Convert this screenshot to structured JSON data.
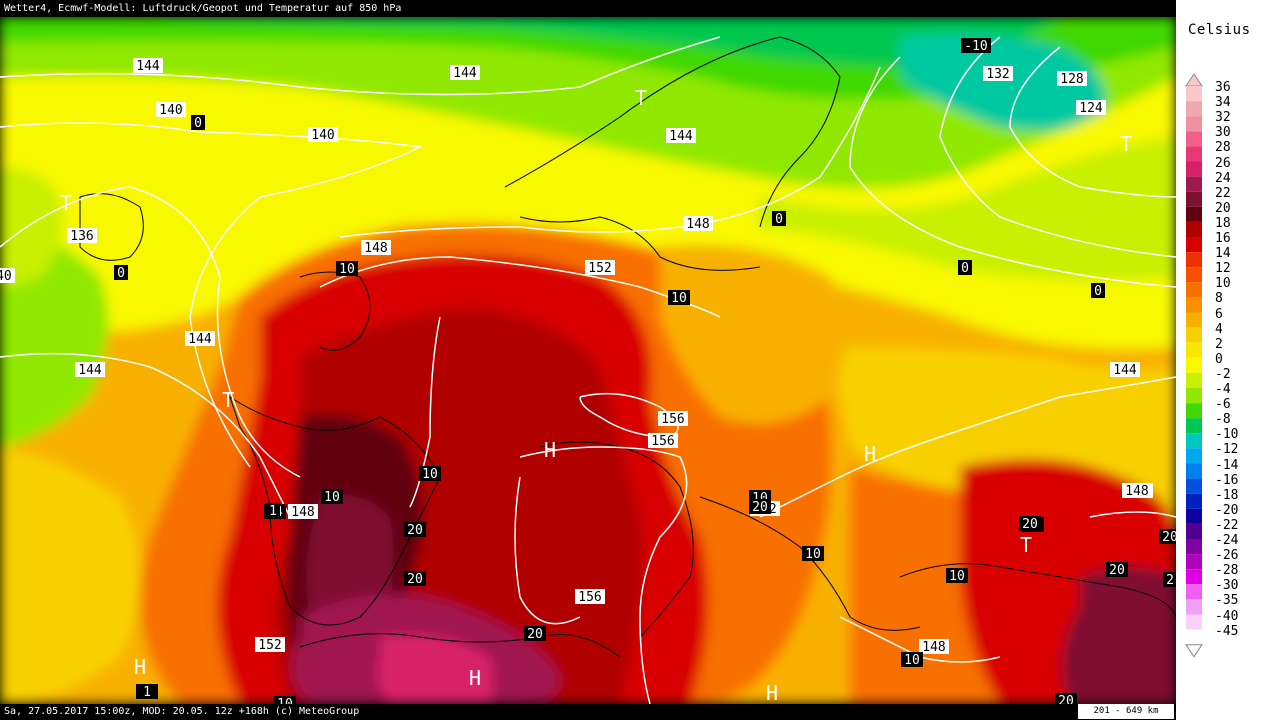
{
  "title": "Wetter4, Ecmwf-Modell: Luftdruck/Geopot und Temperatur auf 850 hPa",
  "footer": "Sa, 27.05.2017 15:00z, MOD: 20.05. 12z +168h (c) MeteoGroup",
  "scale": "201 - 649 km",
  "legend": {
    "unit": "Celsius",
    "entries": [
      {
        "label": "36",
        "color": "#f8c8c8"
      },
      {
        "label": "34",
        "color": "#f0a8b0"
      },
      {
        "label": "32",
        "color": "#f090a0"
      },
      {
        "label": "30",
        "color": "#f06088"
      },
      {
        "label": "28",
        "color": "#e83878"
      },
      {
        "label": "26",
        "color": "#d82068"
      },
      {
        "label": "24",
        "color": "#a01850"
      },
      {
        "label": "22",
        "color": "#801030"
      },
      {
        "label": "20",
        "color": "#600010"
      },
      {
        "label": "18",
        "color": "#b00000"
      },
      {
        "label": "16",
        "color": "#d80000"
      },
      {
        "label": "14",
        "color": "#f03000"
      },
      {
        "label": "12",
        "color": "#f85000"
      },
      {
        "label": "10",
        "color": "#f87000"
      },
      {
        "label": "8",
        "color": "#f89000"
      },
      {
        "label": "6",
        "color": "#f8b000"
      },
      {
        "label": "4",
        "color": "#f8d000"
      },
      {
        "label": "2",
        "color": "#f8e800"
      },
      {
        "label": "0",
        "color": "#f8f800"
      },
      {
        "label": "-2",
        "color": "#c8f000"
      },
      {
        "label": "-4",
        "color": "#90e800"
      },
      {
        "label": "-6",
        "color": "#40d800"
      },
      {
        "label": "-8",
        "color": "#00c850"
      },
      {
        "label": "-10",
        "color": "#00c8c0"
      },
      {
        "label": "-12",
        "color": "#00a8f0"
      },
      {
        "label": "-14",
        "color": "#0080f0"
      },
      {
        "label": "-16",
        "color": "#0050e0"
      },
      {
        "label": "-18",
        "color": "#0020c0"
      },
      {
        "label": "-20",
        "color": "#1000a0"
      },
      {
        "label": "-22",
        "color": "#500090"
      },
      {
        "label": "-24",
        "color": "#8000a0"
      },
      {
        "label": "-26",
        "color": "#b000c0"
      },
      {
        "label": "-28",
        "color": "#e000e0"
      },
      {
        "label": "-30",
        "color": "#f060f0"
      },
      {
        "label": "-35",
        "color": "#f0a0f0"
      },
      {
        "label": "-40",
        "color": "#f8d0f8"
      },
      {
        "label": "-45",
        "color": "#ffffff"
      }
    ]
  },
  "geopotential_labels": [
    "144",
    "144",
    "140",
    "140",
    "136",
    "140",
    "144",
    "144",
    "148",
    "148",
    "152",
    "148",
    "144",
    "132",
    "128",
    "124",
    "144",
    "156",
    "156",
    "152",
    "156",
    "148",
    "148",
    "152",
    "148",
    "10",
    "-10"
  ],
  "temperature_labels": [
    "0",
    "0",
    "0",
    "0",
    "0",
    "10",
    "10",
    "10",
    "10",
    "10",
    "10",
    "10",
    "10",
    "10",
    "10",
    "20",
    "20",
    "20",
    "20",
    "20",
    "20",
    "20",
    "20",
    "20",
    "2",
    "14",
    "1",
    "1"
  ],
  "system_marks": [
    "T",
    "T",
    "T",
    "T",
    "T",
    "H",
    "H",
    "H",
    "H",
    "H"
  ]
}
